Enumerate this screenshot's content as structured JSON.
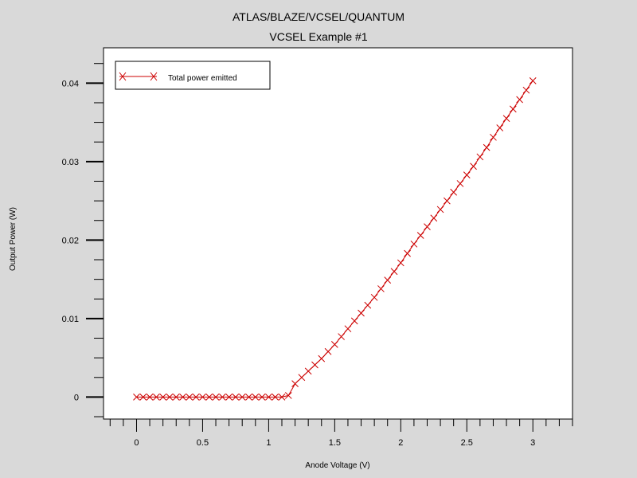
{
  "header": {
    "title": "ATLAS/BLAZE/VCSEL/QUANTUM",
    "subtitle": "VCSEL Example #1"
  },
  "chart_data": {
    "type": "line",
    "title": "ATLAS/BLAZE/VCSEL/QUANTUM",
    "subtitle": "VCSEL Example #1",
    "xlabel": "Anode Voltage (V)",
    "ylabel": "Output Power (W)",
    "xlim": [
      -0.25,
      3.3
    ],
    "ylim": [
      -0.0028,
      0.0445
    ],
    "x_ticks": [
      0,
      0.5,
      1,
      1.5,
      2,
      2.5,
      3
    ],
    "x_tick_labels": [
      "0",
      "0.5",
      "1",
      "1.5",
      "2",
      "2.5",
      "3"
    ],
    "y_ticks": [
      0,
      0.01,
      0.02,
      0.03,
      0.04
    ],
    "y_tick_labels": [
      "0",
      "0.01",
      "0.02",
      "0.03",
      "0.04"
    ],
    "grid": false,
    "legend_position": "top-left",
    "series": [
      {
        "name": "Total power emitted",
        "color": "#cc0000",
        "marker": "x",
        "x": [
          0,
          0.05,
          0.1,
          0.15,
          0.2,
          0.25,
          0.3,
          0.35,
          0.4,
          0.45,
          0.5,
          0.55,
          0.6,
          0.65,
          0.7,
          0.75,
          0.8,
          0.85,
          0.9,
          0.95,
          1.0,
          1.05,
          1.1,
          1.15,
          1.2,
          1.25,
          1.3,
          1.35,
          1.4,
          1.45,
          1.5,
          1.55,
          1.6,
          1.65,
          1.7,
          1.75,
          1.8,
          1.85,
          1.9,
          1.95,
          2.0,
          2.05,
          2.1,
          2.15,
          2.2,
          2.25,
          2.3,
          2.35,
          2.4,
          2.45,
          2.5,
          2.55,
          2.6,
          2.65,
          2.7,
          2.75,
          2.8,
          2.85,
          2.9,
          2.95,
          3.0
        ],
        "y": [
          0,
          0,
          0,
          0,
          0,
          0,
          0,
          0,
          0,
          0,
          0,
          0,
          0,
          0,
          0,
          0,
          0,
          0,
          0,
          0,
          0,
          0,
          0,
          0.0002,
          0.0017,
          0.0025,
          0.0033,
          0.0041,
          0.0049,
          0.0058,
          0.0067,
          0.0077,
          0.0087,
          0.0097,
          0.0107,
          0.0117,
          0.0127,
          0.0138,
          0.0149,
          0.016,
          0.0171,
          0.0183,
          0.0195,
          0.0206,
          0.0217,
          0.0228,
          0.0239,
          0.025,
          0.0261,
          0.0272,
          0.0283,
          0.0294,
          0.0306,
          0.0318,
          0.0331,
          0.0343,
          0.0355,
          0.0367,
          0.0379,
          0.0391,
          0.0403
        ]
      }
    ]
  }
}
